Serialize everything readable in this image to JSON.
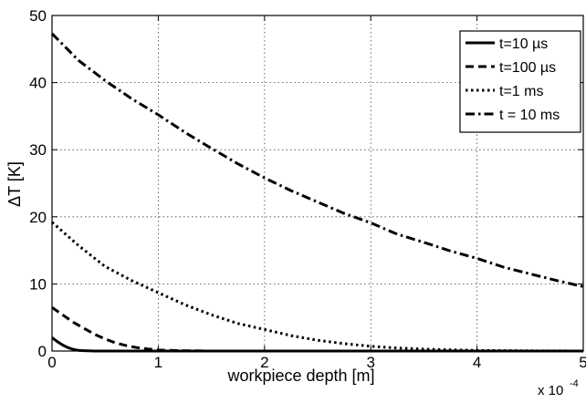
{
  "chart_data": {
    "type": "line",
    "xlabel": "workpiece depth [m]",
    "ylabel": "ΔT [K]",
    "x_multiplier": "x 10",
    "x_multiplier_exponent": "-4",
    "xlim": [
      0,
      5
    ],
    "ylim": [
      0,
      50
    ],
    "x_ticks": [
      "0",
      "1",
      "2",
      "3",
      "4",
      "5"
    ],
    "y_ticks": [
      "0",
      "10",
      "20",
      "30",
      "40",
      "50"
    ],
    "grid": true,
    "legend_position": "top-right",
    "series": [
      {
        "name": "t=10 µs",
        "style": "solid",
        "x": [
          0,
          0.05,
          0.1,
          0.15,
          0.2,
          0.25,
          0.3,
          0.4,
          0.5,
          1,
          2,
          3,
          4,
          5
        ],
        "y": [
          2.0,
          1.4,
          0.9,
          0.5,
          0.25,
          0.1,
          0.05,
          0.0,
          0.0,
          0.0,
          0.0,
          0.0,
          0.0,
          0.0
        ]
      },
      {
        "name": "t=100 µs",
        "style": "dashed",
        "x": [
          0,
          0.1,
          0.2,
          0.3,
          0.4,
          0.5,
          0.6,
          0.7,
          0.8,
          0.9,
          1.0,
          1.2,
          1.5,
          2,
          3,
          4,
          5
        ],
        "y": [
          6.5,
          5.4,
          4.3,
          3.4,
          2.5,
          1.8,
          1.2,
          0.8,
          0.5,
          0.3,
          0.15,
          0.05,
          0.0,
          0.0,
          0.0,
          0.0,
          0.0
        ]
      },
      {
        "name": "t=1 ms",
        "style": "dotted",
        "x": [
          0,
          0.25,
          0.5,
          0.75,
          1.0,
          1.25,
          1.5,
          1.75,
          2.0,
          2.25,
          2.5,
          2.75,
          3.0,
          3.25,
          3.5,
          3.75,
          4.0,
          4.5,
          5.0
        ],
        "y": [
          19.2,
          15.7,
          12.6,
          10.5,
          8.7,
          6.9,
          5.4,
          4.1,
          3.2,
          2.3,
          1.6,
          1.1,
          0.7,
          0.45,
          0.28,
          0.17,
          0.1,
          0.03,
          0.0
        ]
      },
      {
        "name": "t = 10 ms",
        "style": "dashdot",
        "x": [
          0,
          0.25,
          0.5,
          0.75,
          1.0,
          1.25,
          1.5,
          1.75,
          2.0,
          2.25,
          2.5,
          2.75,
          3.0,
          3.25,
          3.5,
          3.75,
          4.0,
          4.25,
          4.5,
          4.75,
          5.0
        ],
        "y": [
          47.3,
          43.3,
          40.3,
          37.6,
          35.2,
          32.6,
          30.2,
          27.9,
          25.8,
          23.9,
          22.2,
          20.5,
          19.1,
          17.4,
          16.2,
          14.9,
          13.8,
          12.5,
          11.5,
          10.5,
          9.6
        ]
      }
    ]
  }
}
